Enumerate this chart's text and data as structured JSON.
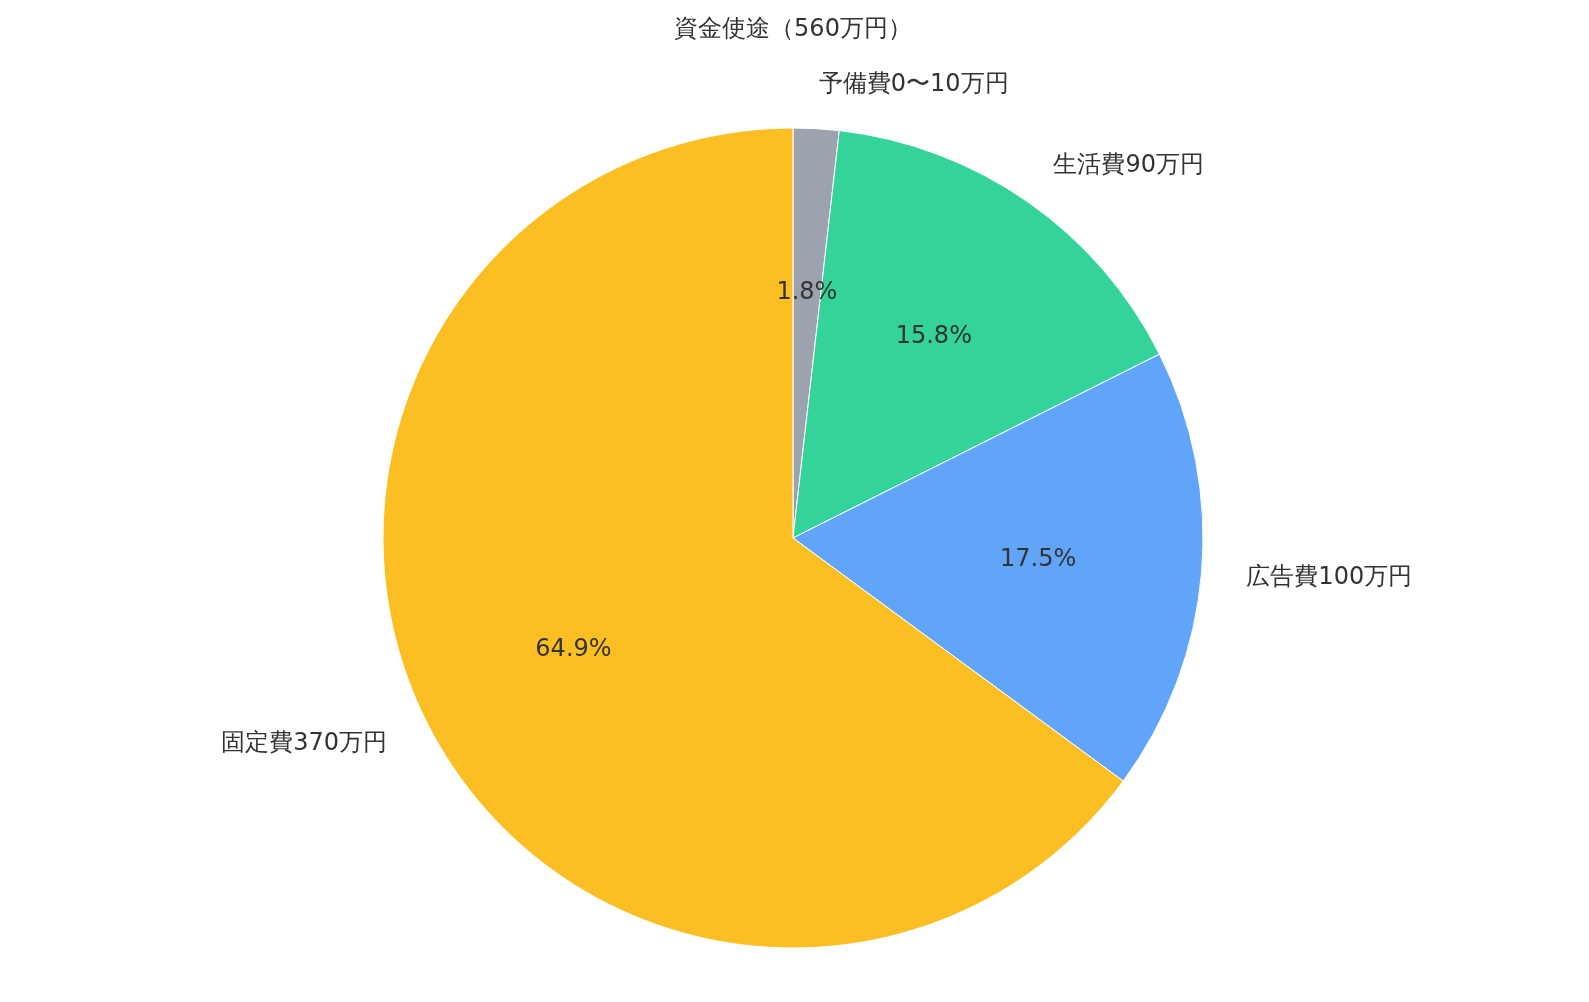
{
  "chart_data": {
    "type": "pie",
    "title": "資金使途（560万円）",
    "categories": [
      "予備費0〜10万円",
      "生活費90万円",
      "広告費100万円",
      "固定費370万円"
    ],
    "values": [
      1.8,
      15.8,
      17.5,
      64.9
    ],
    "value_labels": [
      "1.8%",
      "15.8%",
      "17.5%",
      "64.9%"
    ],
    "colors": [
      "#9ca3af",
      "#34d399",
      "#60a5fa",
      "#fbbf24"
    ],
    "legend": false
  }
}
